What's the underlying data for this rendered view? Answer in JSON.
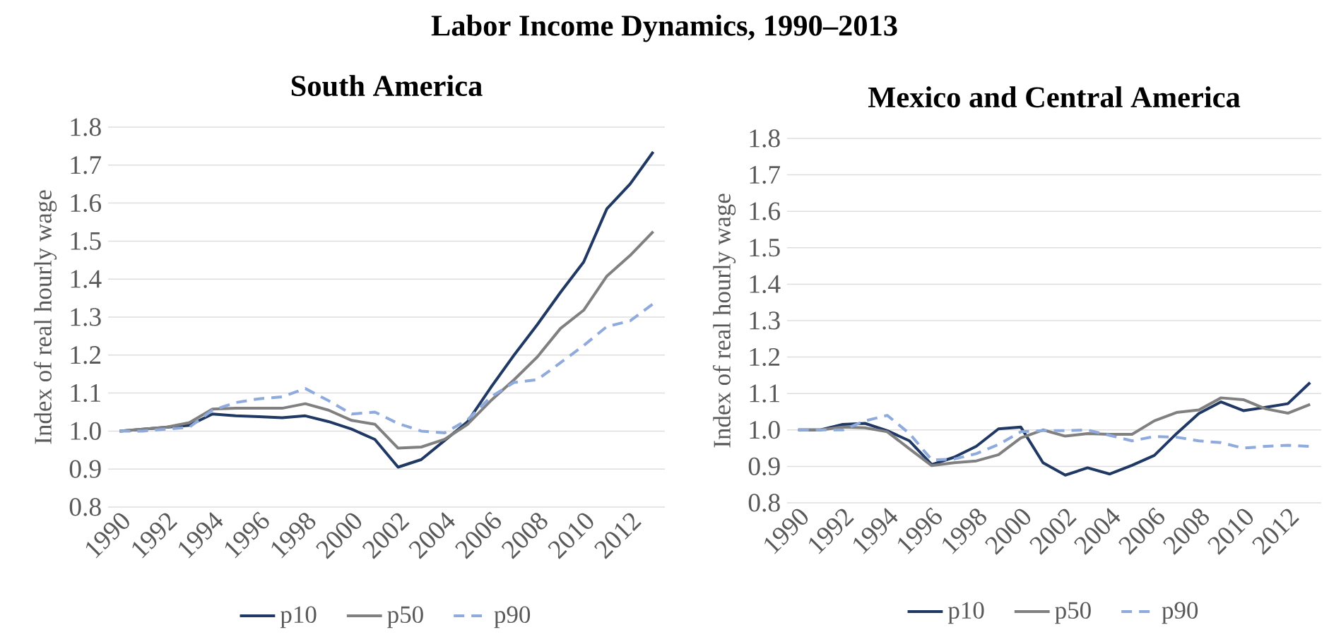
{
  "chart_data": [
    {
      "type": "line",
      "title": "South America",
      "ylabel": "Index of real hourly wage",
      "annotations": [
        "Labor Income Dynamics, 1990–2013"
      ],
      "categories": [
        "1990",
        null,
        "1992",
        null,
        "1994",
        null,
        "1996",
        null,
        "1998",
        null,
        "2000",
        null,
        "2002",
        null,
        "2004",
        null,
        "2006",
        null,
        "2008",
        null,
        "2010",
        null,
        "2012",
        null
      ],
      "series": [
        {
          "name": "p10",
          "color": "#1f3864",
          "line_style": "solid",
          "values": [
            1.0,
            1.005,
            1.01,
            1.015,
            1.045,
            1.04,
            1.038,
            1.035,
            1.04,
            1.025,
            1.005,
            0.978,
            0.905,
            0.925,
            0.975,
            1.025,
            1.115,
            1.2,
            1.28,
            1.365,
            1.445,
            1.585,
            1.65,
            1.735
          ]
        },
        {
          "name": "p50",
          "color": "#808080",
          "line_style": "solid",
          "values": [
            1.0,
            1.005,
            1.01,
            1.022,
            1.058,
            1.06,
            1.06,
            1.06,
            1.072,
            1.055,
            1.028,
            1.018,
            0.955,
            0.958,
            0.978,
            1.018,
            1.08,
            1.135,
            1.195,
            1.27,
            1.318,
            1.408,
            1.462,
            1.525
          ]
        },
        {
          "name": "p90",
          "color": "#8faadc",
          "line_style": "dashed",
          "values": [
            1.0,
            1.0,
            1.005,
            1.01,
            1.055,
            1.075,
            1.085,
            1.09,
            1.112,
            1.08,
            1.045,
            1.05,
            1.02,
            1.0,
            0.995,
            1.03,
            1.09,
            1.128,
            1.135,
            1.18,
            1.225,
            1.275,
            1.29,
            1.335
          ]
        }
      ],
      "ylim": [
        0.8,
        1.8
      ],
      "yticks": [
        0.8,
        0.9,
        {
          "value": 1.0,
          "label": "1.0"
        },
        1.1,
        1.2,
        1.3,
        1.4,
        1.5,
        1.6,
        1.7,
        1.8
      ],
      "grid": "y",
      "legend": "bottom"
    },
    {
      "type": "line",
      "title": "Mexico and Central America",
      "ylabel": "Index of real hourly wage",
      "categories": [
        "1990",
        null,
        "1992",
        null,
        "1994",
        null,
        "1996",
        null,
        "1998",
        null,
        "2000",
        null,
        "2002",
        null,
        "2004",
        null,
        "2006",
        null,
        "2008",
        null,
        "2010",
        null,
        "2012",
        null
      ],
      "series": [
        {
          "name": "p10",
          "color": "#1f3864",
          "line_style": "solid",
          "values": [
            1.0,
            1.0,
            1.015,
            1.018,
            0.998,
            0.97,
            0.905,
            0.925,
            0.955,
            1.003,
            1.008,
            0.91,
            0.876,
            0.896,
            0.879,
            0.903,
            0.93,
            0.99,
            1.045,
            1.077,
            1.053,
            1.062,
            1.072,
            1.13
          ]
        },
        {
          "name": "p50",
          "color": "#808080",
          "line_style": "solid",
          "values": [
            1.0,
            1.0,
            1.008,
            1.006,
            0.995,
            0.948,
            0.902,
            0.91,
            0.915,
            0.932,
            0.978,
            1.0,
            0.983,
            0.99,
            0.988,
            0.988,
            1.025,
            1.048,
            1.055,
            1.088,
            1.083,
            1.058,
            1.046,
            1.07
          ]
        },
        {
          "name": "p90",
          "color": "#8faadc",
          "line_style": "dashed",
          "values": [
            1.0,
            1.0,
            1.0,
            1.025,
            1.04,
            0.99,
            0.918,
            0.92,
            0.935,
            0.96,
            0.995,
            0.998,
            0.998,
            1.0,
            0.985,
            0.97,
            0.982,
            0.98,
            0.97,
            0.965,
            0.95,
            0.955,
            0.958,
            0.955
          ]
        }
      ],
      "ylim": [
        0.8,
        1.8
      ],
      "yticks": [
        0.8,
        0.9,
        {
          "value": 1.0,
          "label": "1.0"
        },
        1.1,
        1.2,
        1.3,
        1.4,
        1.5,
        1.6,
        1.7,
        1.8
      ],
      "grid": "y",
      "legend": "bottom"
    }
  ]
}
